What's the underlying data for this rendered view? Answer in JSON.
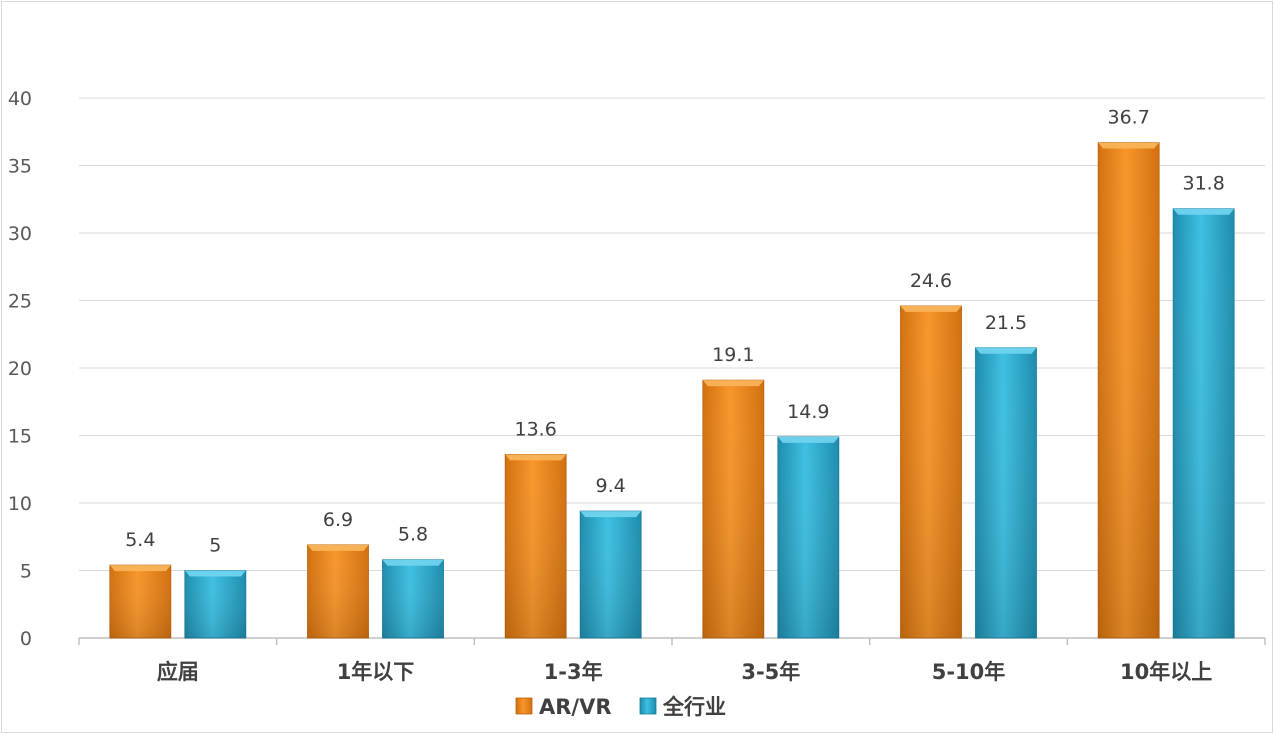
{
  "chart_data": {
    "type": "bar",
    "title": "",
    "xlabel": "",
    "ylabel": "",
    "categories": [
      "应届",
      "1年以下",
      "1-3年",
      "3-5年",
      "5-10年",
      "10年以上"
    ],
    "series": [
      {
        "name": "AR/VR",
        "values": [
          5.4,
          6.9,
          13.6,
          19.1,
          24.6,
          36.7
        ],
        "color": "#F28E1C"
      },
      {
        "name": "全行业",
        "values": [
          5,
          5.8,
          9.4,
          14.9,
          21.5,
          31.8
        ],
        "color": "#2BAFD1"
      }
    ],
    "ylim": [
      0,
      40
    ],
    "yticks": [
      0,
      5,
      10,
      15,
      20,
      25,
      30,
      35,
      40
    ],
    "grid": true,
    "legend": "bottom"
  }
}
